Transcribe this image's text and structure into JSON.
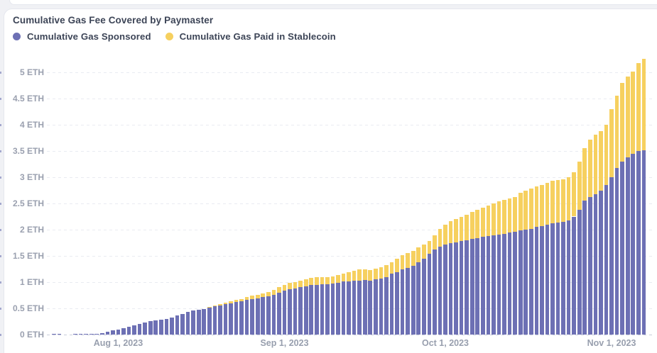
{
  "card": {
    "title": "Cumulative Gas Fee Covered by Paymaster"
  },
  "legend": {
    "items": [
      {
        "label": "Cumulative Gas Sponsored",
        "color": "#6d70b4"
      },
      {
        "label": "Cumulative Gas Paid in Stablecoin",
        "color": "#f6d05f"
      }
    ]
  },
  "colors": {
    "sponsored": "#6d70b4",
    "stablecoin": "#f6d05f",
    "card_background": "#ffffff",
    "page_background": "#f0f1f5",
    "card_border": "#e5e7ee",
    "title_text": "#3d4557",
    "axis_text": "#9aa0af",
    "gridline": "#e9ebf1"
  },
  "chart_data": {
    "type": "bar",
    "stacked": true,
    "title": "Cumulative Gas Fee Covered by Paymaster",
    "unit": "ETH",
    "n_bars": 111,
    "ylim": [
      0,
      5.3
    ],
    "grid": "horizontal-dashed",
    "legend_position": "top-left",
    "y_tick_labels": [
      "0 ETH",
      "0.5 ETH",
      "1 ETH",
      "1.5 ETH",
      "2 ETH",
      "2.5 ETH",
      "3 ETH",
      "3.5 ETH",
      "4 ETH",
      "4.5 ETH",
      "5 ETH"
    ],
    "y_tick_values": [
      0,
      0.5,
      1,
      1.5,
      2,
      2.5,
      3,
      3.5,
      4,
      4.5,
      5
    ],
    "x_ticks": [
      {
        "label": "Aug 1, 2023",
        "bar_index": 12
      },
      {
        "label": "Sep 1, 2023",
        "bar_index": 43
      },
      {
        "label": "Oct 1, 2023",
        "bar_index": 73
      },
      {
        "label": "Nov 1, 2023",
        "bar_index": 104
      }
    ],
    "series": [
      {
        "name": "Cumulative Gas Sponsored",
        "color": "#6d70b4",
        "values": [
          0.01,
          0.01,
          0,
          0,
          0.01,
          0.01,
          0.01,
          0.02,
          0.02,
          0.03,
          0.05,
          0.08,
          0.1,
          0.12,
          0.15,
          0.18,
          0.2,
          0.23,
          0.26,
          0.27,
          0.28,
          0.3,
          0.32,
          0.36,
          0.39,
          0.43,
          0.46,
          0.47,
          0.49,
          0.51,
          0.54,
          0.56,
          0.58,
          0.6,
          0.62,
          0.64,
          0.66,
          0.68,
          0.69,
          0.71,
          0.73,
          0.76,
          0.8,
          0.84,
          0.86,
          0.88,
          0.9,
          0.92,
          0.94,
          0.95,
          0.96,
          0.96,
          0.97,
          0.99,
          1.01,
          1.02,
          1.03,
          1.03,
          1.04,
          1.03,
          1.05,
          1.07,
          1.1,
          1.16,
          1.19,
          1.24,
          1.27,
          1.31,
          1.38,
          1.45,
          1.54,
          1.62,
          1.67,
          1.72,
          1.74,
          1.76,
          1.78,
          1.8,
          1.82,
          1.84,
          1.86,
          1.88,
          1.89,
          1.91,
          1.92,
          1.94,
          1.96,
          1.98,
          2.0,
          2.02,
          2.05,
          2.07,
          2.09,
          2.12,
          2.14,
          2.15,
          2.17,
          2.25,
          2.38,
          2.55,
          2.62,
          2.68,
          2.74,
          2.85,
          3.0,
          3.18,
          3.3,
          3.38,
          3.45,
          3.5,
          3.52
        ]
      },
      {
        "name": "Cumulative Gas Paid in Stablecoin",
        "color": "#f6d05f",
        "values": [
          0,
          0,
          0,
          0,
          0,
          0,
          0,
          0,
          0,
          0,
          0,
          0,
          0,
          0,
          0,
          0,
          0,
          0,
          0,
          0,
          0,
          0,
          0,
          0,
          0,
          0,
          0,
          0,
          0,
          0.01,
          0.01,
          0.02,
          0.03,
          0.03,
          0.04,
          0.04,
          0.05,
          0.06,
          0.07,
          0.08,
          0.08,
          0.09,
          0.1,
          0.11,
          0.12,
          0.12,
          0.13,
          0.14,
          0.14,
          0.14,
          0.13,
          0.14,
          0.14,
          0.15,
          0.15,
          0.17,
          0.19,
          0.21,
          0.21,
          0.2,
          0.21,
          0.22,
          0.22,
          0.22,
          0.25,
          0.27,
          0.28,
          0.29,
          0.28,
          0.27,
          0.24,
          0.27,
          0.34,
          0.38,
          0.42,
          0.44,
          0.46,
          0.48,
          0.52,
          0.54,
          0.56,
          0.58,
          0.61,
          0.63,
          0.65,
          0.65,
          0.66,
          0.72,
          0.75,
          0.77,
          0.78,
          0.78,
          0.8,
          0.81,
          0.81,
          0.81,
          0.83,
          0.85,
          0.92,
          1.0,
          1.1,
          1.13,
          1.14,
          1.15,
          1.3,
          1.37,
          1.5,
          1.54,
          1.57,
          1.68,
          1.74
        ]
      }
    ]
  }
}
